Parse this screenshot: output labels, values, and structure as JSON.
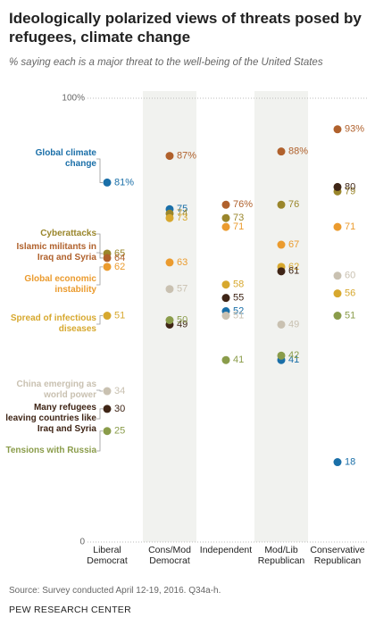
{
  "title": "Ideologically polarized views of threats posed by refugees, climate change",
  "subtitle": "% saying each is a major threat to the well-being of the United States",
  "chart_data": {
    "type": "dot",
    "categories": [
      "Liberal Democrat",
      "Cons/Mod Democrat",
      "Independent",
      "Mod/Lib Republican",
      "Conservative Republican"
    ],
    "ylim": [
      0,
      100
    ],
    "yticks": [
      0,
      {
        "value": 100,
        "label": "100%"
      }
    ],
    "grid": true,
    "series": [
      {
        "name": "Global climate change",
        "color": "#1a6fa8",
        "values": [
          81,
          75,
          52,
          41,
          18
        ],
        "value_labels": [
          "81%",
          "75",
          "52",
          "41",
          "18"
        ]
      },
      {
        "name": "Cyberattacks",
        "color": "#9a862b",
        "values": [
          65,
          74,
          73,
          76,
          79
        ]
      },
      {
        "name": "Islamic militants in Iraq and Syria",
        "color": "#b0612c",
        "values": [
          64,
          87,
          76,
          88,
          93
        ],
        "value_labels": [
          "64",
          "87%",
          "76%",
          "88%",
          "93%"
        ]
      },
      {
        "name": "Global economic instability",
        "color": "#eb9b2e",
        "values": [
          62,
          63,
          71,
          67,
          71
        ]
      },
      {
        "name": "Spread of infectious diseases",
        "color": "#d7a82e",
        "values": [
          51,
          73,
          58,
          62,
          56
        ]
      },
      {
        "name": "China emerging as world power",
        "color": "#c9c1b1",
        "values": [
          34,
          57,
          51,
          49,
          60
        ]
      },
      {
        "name": "Many refugees leaving countries like Iraq and Syria",
        "color": "#3f2516",
        "values": [
          30,
          49,
          55,
          61,
          80
        ]
      },
      {
        "name": "Tensions with Russia",
        "color": "#8a9c4a",
        "values": [
          25,
          50,
          41,
          42,
          51
        ]
      }
    ]
  },
  "source": "Source: Survey conducted April 12-19, 2016. Q34a-h.",
  "footer": "PEW RESEARCH CENTER"
}
